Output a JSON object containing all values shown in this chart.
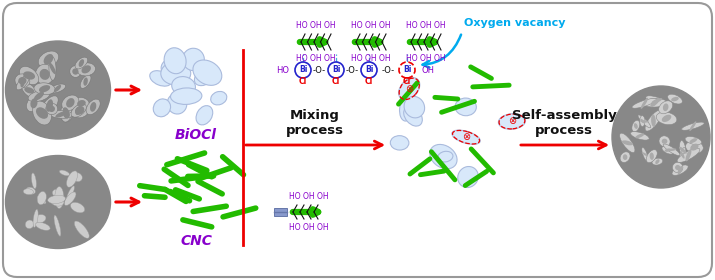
{
  "bg_color": "#ffffff",
  "border_color": "#999999",
  "purple": "#8800CC",
  "green": "#22BB00",
  "blue_cyan": "#00AAEE",
  "red": "#EE0000",
  "blue_bi": "#2222CC",
  "black": "#111111",
  "biocl_label": "BiOCl",
  "cnc_label": "CNC",
  "mixing_label": "Mixing\nprocess",
  "self_assembly_label": "Self-assembly\nprocess",
  "oxygen_vacancy_label": "Oxygen vacancy"
}
